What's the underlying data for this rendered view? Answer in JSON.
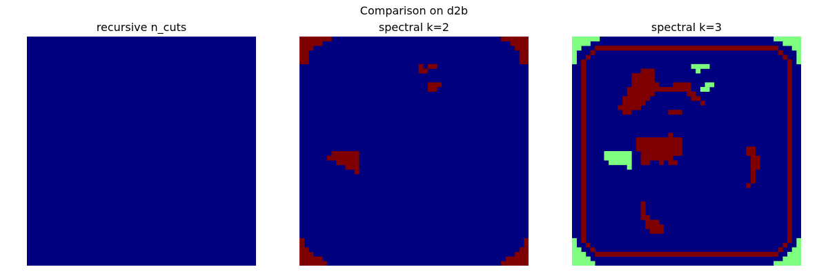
{
  "figure": {
    "suptitle": "Comparison on d2b"
  },
  "chart_data": [
    {
      "type": "heatmap",
      "title": "recursive n_cuts",
      "grid_size": 50,
      "colors": [
        "#00007f",
        "#7fff7f",
        "#7f0000"
      ],
      "base_label": 0,
      "regions": []
    },
    {
      "type": "heatmap",
      "title": "spectral k=2",
      "grid_size": 50,
      "colors": [
        "#00007f",
        "#7f0000"
      ],
      "base_label": 0,
      "regions": [
        {
          "label": 1,
          "rects": [
            [
              0,
              0,
              7,
              1
            ],
            [
              0,
              1,
              5,
              1
            ],
            [
              0,
              2,
              3,
              1
            ],
            [
              0,
              3,
              2,
              3
            ],
            [
              44,
              0,
              6,
              1
            ],
            [
              46,
              1,
              4,
              1
            ],
            [
              47,
              2,
              3,
              1
            ],
            [
              48,
              3,
              2,
              3
            ],
            [
              0,
              44,
              1,
              2
            ],
            [
              0,
              46,
              2,
              1
            ],
            [
              0,
              47,
              3,
              1
            ],
            [
              0,
              48,
              5,
              1
            ],
            [
              0,
              49,
              6,
              1
            ],
            [
              49,
              44,
              1,
              2
            ],
            [
              48,
              46,
              2,
              1
            ],
            [
              47,
              47,
              3,
              1
            ],
            [
              45,
              48,
              5,
              1
            ],
            [
              44,
              49,
              6,
              1
            ],
            [
              26,
              6,
              1,
              2
            ],
            [
              27,
              7,
              1,
              1
            ],
            [
              28,
              6,
              2,
              1
            ],
            [
              28,
              10,
              3,
              1
            ],
            [
              28,
              11,
              2,
              1
            ],
            [
              7,
              25,
              6,
              1
            ],
            [
              6,
              26,
              7,
              1
            ],
            [
              8,
              27,
              5,
              1
            ],
            [
              10,
              28,
              3,
              1
            ],
            [
              12,
              29,
              1,
              1
            ]
          ]
        }
      ]
    },
    {
      "type": "heatmap",
      "title": "spectral k=3",
      "grid_size": 50,
      "colors": [
        "#00007f",
        "#7fff7f",
        "#7f0000"
      ],
      "base_label": 0,
      "regions": [
        {
          "label": 2,
          "rects": [
            [
              5,
              2,
              40,
              1
            ],
            [
              5,
              47,
              40,
              1
            ],
            [
              2,
              5,
              1,
              40
            ],
            [
              47,
              5,
              1,
              40
            ],
            [
              3,
              4,
              1,
              1
            ],
            [
              4,
              3,
              1,
              1
            ],
            [
              45,
              3,
              1,
              1
            ],
            [
              46,
              4,
              1,
              1
            ],
            [
              3,
              45,
              1,
              1
            ],
            [
              4,
              46,
              1,
              1
            ],
            [
              45,
              46,
              1,
              1
            ],
            [
              46,
              45,
              1,
              1
            ],
            [
              15,
              7,
              3,
              1
            ],
            [
              13,
              8,
              5,
              1
            ],
            [
              13,
              9,
              5,
              1
            ],
            [
              13,
              10,
              5,
              1
            ],
            [
              12,
              11,
              7,
              1
            ],
            [
              12,
              12,
              6,
              1
            ],
            [
              11,
              13,
              6,
              1
            ],
            [
              11,
              14,
              5,
              1
            ],
            [
              10,
              15,
              5,
              1
            ],
            [
              11,
              16,
              2,
              1
            ],
            [
              18,
              11,
              2,
              1
            ],
            [
              18,
              10,
              1,
              1
            ],
            [
              22,
              10,
              4,
              1
            ],
            [
              20,
              11,
              6,
              1
            ],
            [
              25,
              12,
              2,
              1
            ],
            [
              26,
              13,
              2,
              1
            ],
            [
              28,
              14,
              1,
              1
            ],
            [
              21,
              16,
              3,
              1
            ],
            [
              14,
              15,
              1,
              1
            ],
            [
              21,
              21,
              1,
              1
            ],
            [
              20,
              22,
              4,
              1
            ],
            [
              14,
              22,
              6,
              1
            ],
            [
              14,
              23,
              10,
              1
            ],
            [
              14,
              24,
              10,
              1
            ],
            [
              15,
              25,
              9,
              1
            ],
            [
              15,
              26,
              7,
              1
            ],
            [
              15,
              27,
              2,
              1
            ],
            [
              19,
              27,
              1,
              1
            ],
            [
              21,
              27,
              2,
              1
            ],
            [
              38,
              24,
              2,
              1
            ],
            [
              38,
              25,
              2,
              1
            ],
            [
              39,
              26,
              2,
              1
            ],
            [
              39,
              27,
              2,
              1
            ],
            [
              39,
              28,
              2,
              1
            ],
            [
              39,
              29,
              1,
              2
            ],
            [
              39,
              31,
              1,
              1
            ],
            [
              38,
              32,
              1,
              1
            ],
            [
              15,
              36,
              1,
              1
            ],
            [
              15,
              37,
              1,
              2
            ],
            [
              15,
              39,
              2,
              1
            ],
            [
              16,
              40,
              3,
              1
            ],
            [
              16,
              41,
              4,
              1
            ],
            [
              17,
              42,
              3,
              1
            ]
          ]
        },
        {
          "label": 1,
          "rects": [
            [
              0,
              0,
              6,
              1
            ],
            [
              0,
              1,
              4,
              1
            ],
            [
              0,
              2,
              2,
              1
            ],
            [
              0,
              3,
              1,
              3
            ],
            [
              44,
              0,
              6,
              1
            ],
            [
              46,
              1,
              4,
              1
            ],
            [
              48,
              2,
              2,
              1
            ],
            [
              49,
              3,
              1,
              3
            ],
            [
              0,
              44,
              1,
              2
            ],
            [
              0,
              46,
              2,
              1
            ],
            [
              0,
              47,
              3,
              1
            ],
            [
              0,
              48,
              4,
              1
            ],
            [
              0,
              49,
              5,
              1
            ],
            [
              49,
              44,
              1,
              2
            ],
            [
              48,
              46,
              2,
              1
            ],
            [
              47,
              47,
              3,
              1
            ],
            [
              46,
              48,
              4,
              1
            ],
            [
              44,
              49,
              6,
              1
            ],
            [
              26,
              6,
              2,
              1
            ],
            [
              27,
              7,
              1,
              1
            ],
            [
              28,
              6,
              2,
              1
            ],
            [
              29,
              10,
              2,
              1
            ],
            [
              28,
              11,
              2,
              1
            ],
            [
              7,
              25,
              6,
              1
            ],
            [
              7,
              26,
              6,
              1
            ],
            [
              8,
              27,
              5,
              1
            ],
            [
              12,
              28,
              1,
              1
            ]
          ]
        }
      ]
    }
  ]
}
